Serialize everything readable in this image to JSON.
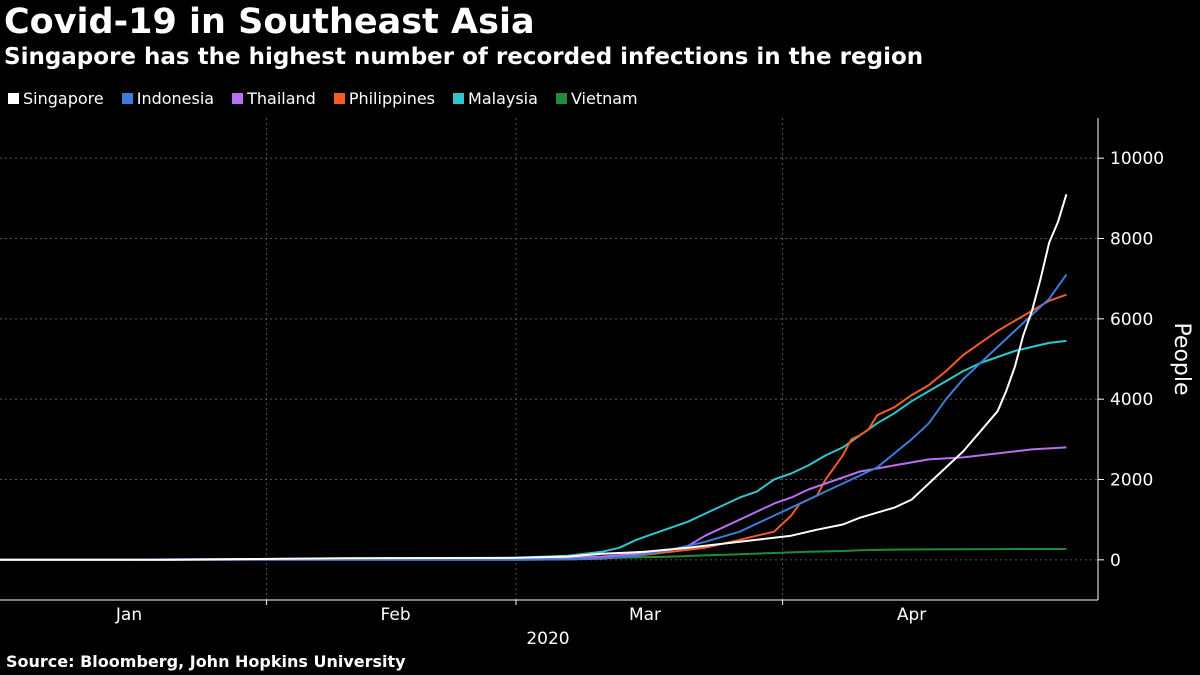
{
  "chart_data": {
    "type": "line",
    "title": "Covid-19 in Southeast Asia",
    "subtitle": "Singapore has the highest number of recorded infections in the region",
    "ylabel": "People",
    "xlabel": "2020",
    "source": "Source: Bloomberg, John Hopkins University",
    "ylim": [
      -1000,
      11000
    ],
    "yticks": [
      0,
      2000,
      4000,
      6000,
      8000,
      10000
    ],
    "x_range_days": [
      0,
      100
    ],
    "month_labels": [
      {
        "label": "Jan",
        "day": 15
      },
      {
        "label": "Feb",
        "day": 46
      },
      {
        "label": "Mar",
        "day": 75
      },
      {
        "label": "Apr",
        "day": 106
      }
    ],
    "month_boundaries": [
      31,
      60,
      91
    ],
    "grid": true,
    "legend_position": "top-left",
    "series": [
      {
        "name": "Singapore",
        "color": "#ffffff",
        "points": [
          [
            0,
            0
          ],
          [
            20,
            0
          ],
          [
            30,
            20
          ],
          [
            40,
            40
          ],
          [
            60,
            50
          ],
          [
            66,
            80
          ],
          [
            70,
            150
          ],
          [
            75,
            200
          ],
          [
            80,
            300
          ],
          [
            84,
            400
          ],
          [
            88,
            500
          ],
          [
            92,
            600
          ],
          [
            95,
            750
          ],
          [
            98,
            880
          ],
          [
            100,
            1050
          ],
          [
            104,
            1300
          ],
          [
            106,
            1500
          ],
          [
            108,
            1900
          ],
          [
            110,
            2300
          ],
          [
            112,
            2700
          ],
          [
            114,
            3200
          ],
          [
            116,
            3700
          ],
          [
            117,
            4200
          ],
          [
            118,
            4800
          ],
          [
            119,
            5600
          ],
          [
            120,
            6200
          ],
          [
            121,
            7000
          ],
          [
            122,
            7900
          ],
          [
            123,
            8400
          ],
          [
            124,
            9100
          ]
        ]
      },
      {
        "name": "Indonesia",
        "color": "#3b7dd8",
        "points": [
          [
            0,
            0
          ],
          [
            60,
            0
          ],
          [
            66,
            10
          ],
          [
            70,
            40
          ],
          [
            74,
            100
          ],
          [
            78,
            250
          ],
          [
            82,
            450
          ],
          [
            86,
            700
          ],
          [
            90,
            1100
          ],
          [
            94,
            1500
          ],
          [
            98,
            1900
          ],
          [
            102,
            2300
          ],
          [
            106,
            3000
          ],
          [
            108,
            3400
          ],
          [
            110,
            4000
          ],
          [
            112,
            4500
          ],
          [
            114,
            4900
          ],
          [
            116,
            5300
          ],
          [
            118,
            5700
          ],
          [
            120,
            6100
          ],
          [
            122,
            6500
          ],
          [
            124,
            7100
          ]
        ]
      },
      {
        "name": "Thailand",
        "color": "#b96ff0",
        "points": [
          [
            0,
            0
          ],
          [
            14,
            5
          ],
          [
            20,
            10
          ],
          [
            40,
            30
          ],
          [
            60,
            40
          ],
          [
            66,
            50
          ],
          [
            70,
            80
          ],
          [
            74,
            150
          ],
          [
            78,
            250
          ],
          [
            80,
            350
          ],
          [
            82,
            600
          ],
          [
            84,
            800
          ],
          [
            86,
            1000
          ],
          [
            88,
            1200
          ],
          [
            90,
            1400
          ],
          [
            92,
            1550
          ],
          [
            94,
            1750
          ],
          [
            96,
            1900
          ],
          [
            98,
            2050
          ],
          [
            100,
            2200
          ],
          [
            104,
            2350
          ],
          [
            108,
            2500
          ],
          [
            112,
            2550
          ],
          [
            116,
            2650
          ],
          [
            120,
            2750
          ],
          [
            124,
            2800
          ]
        ]
      },
      {
        "name": "Philippines",
        "color": "#f55b23",
        "points": [
          [
            0,
            0
          ],
          [
            60,
            0
          ],
          [
            66,
            10
          ],
          [
            70,
            30
          ],
          [
            74,
            100
          ],
          [
            78,
            200
          ],
          [
            82,
            300
          ],
          [
            86,
            500
          ],
          [
            88,
            600
          ],
          [
            90,
            700
          ],
          [
            92,
            1100
          ],
          [
            93,
            1400
          ],
          [
            94,
            1500
          ],
          [
            95,
            1600
          ],
          [
            96,
            2000
          ],
          [
            97,
            2300
          ],
          [
            98,
            2600
          ],
          [
            99,
            3000
          ],
          [
            100,
            3100
          ],
          [
            101,
            3250
          ],
          [
            102,
            3600
          ],
          [
            104,
            3800
          ],
          [
            106,
            4100
          ],
          [
            108,
            4350
          ],
          [
            110,
            4700
          ],
          [
            112,
            5100
          ],
          [
            114,
            5400
          ],
          [
            116,
            5700
          ],
          [
            118,
            5950
          ],
          [
            120,
            6200
          ],
          [
            122,
            6450
          ],
          [
            124,
            6600
          ]
        ]
      },
      {
        "name": "Malaysia",
        "color": "#2ec7cf",
        "points": [
          [
            0,
            0
          ],
          [
            14,
            0
          ],
          [
            20,
            10
          ],
          [
            40,
            20
          ],
          [
            60,
            50
          ],
          [
            66,
            100
          ],
          [
            70,
            200
          ],
          [
            72,
            300
          ],
          [
            74,
            500
          ],
          [
            76,
            650
          ],
          [
            78,
            800
          ],
          [
            80,
            950
          ],
          [
            82,
            1150
          ],
          [
            84,
            1350
          ],
          [
            86,
            1550
          ],
          [
            88,
            1700
          ],
          [
            90,
            2000
          ],
          [
            92,
            2150
          ],
          [
            94,
            2350
          ],
          [
            96,
            2600
          ],
          [
            98,
            2800
          ],
          [
            100,
            3100
          ],
          [
            102,
            3400
          ],
          [
            104,
            3650
          ],
          [
            106,
            3950
          ],
          [
            108,
            4200
          ],
          [
            110,
            4450
          ],
          [
            112,
            4700
          ],
          [
            114,
            4900
          ],
          [
            116,
            5050
          ],
          [
            118,
            5200
          ],
          [
            120,
            5300
          ],
          [
            122,
            5400
          ],
          [
            124,
            5450
          ]
        ]
      },
      {
        "name": "Vietnam",
        "color": "#1f8c3a",
        "points": [
          [
            0,
            0
          ],
          [
            14,
            0
          ],
          [
            20,
            5
          ],
          [
            30,
            10
          ],
          [
            40,
            15
          ],
          [
            60,
            20
          ],
          [
            66,
            30
          ],
          [
            70,
            45
          ],
          [
            74,
            60
          ],
          [
            78,
            80
          ],
          [
            82,
            110
          ],
          [
            86,
            140
          ],
          [
            90,
            170
          ],
          [
            94,
            200
          ],
          [
            98,
            220
          ],
          [
            100,
            240
          ],
          [
            104,
            255
          ],
          [
            108,
            260
          ],
          [
            112,
            265
          ],
          [
            116,
            268
          ],
          [
            120,
            270
          ],
          [
            124,
            270
          ]
        ]
      }
    ]
  }
}
